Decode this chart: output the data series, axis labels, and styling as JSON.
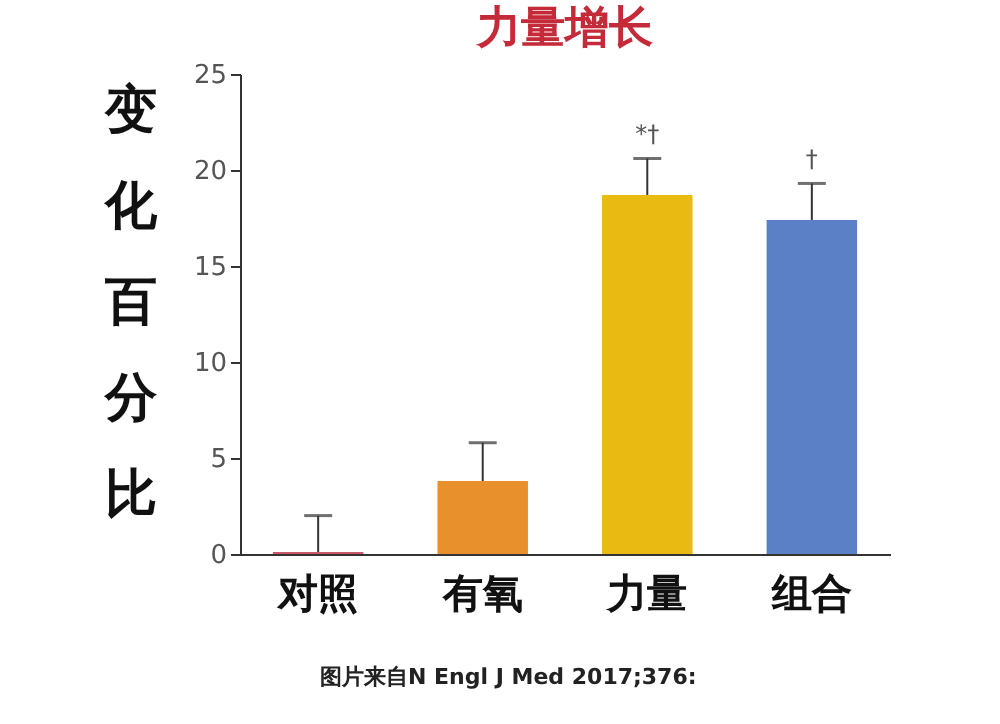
{
  "chart_data": {
    "type": "bar",
    "title": "力量增长",
    "ylabel": "变化百分比",
    "categories": [
      "对照",
      "有氧",
      "力量",
      "组合"
    ],
    "values": [
      0.1,
      3.8,
      18.7,
      17.4
    ],
    "colors": [
      "#c8586a",
      "#e8912c",
      "#e9bb12",
      "#5b80c6"
    ],
    "errors": [
      [
        0.1,
        2.0
      ],
      [
        3.8,
        5.8
      ],
      [
        18.7,
        20.6
      ],
      [
        17.4,
        19.3
      ]
    ],
    "ylim": [
      0,
      25
    ],
    "yticks": [
      0,
      5,
      10,
      15,
      20,
      25
    ],
    "grid": false,
    "legend": false,
    "annotations": [
      {
        "text": "*†",
        "x": "力量",
        "y": 20.6
      },
      {
        "text": "†",
        "x": "组合",
        "y": 19.3
      },
      "图片来自N Engl J Med 2017;376:"
    ]
  }
}
